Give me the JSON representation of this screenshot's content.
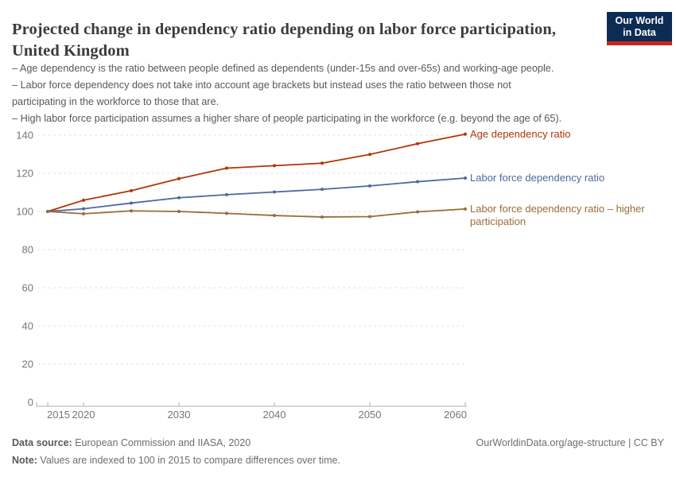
{
  "header": {
    "title": "Projected change in dependency ratio depending on labor force participation, United Kingdom",
    "logo": {
      "line1": "Our World",
      "line2": "in Data",
      "bg_color": "#0c2c54",
      "bar_color": "#c9251c"
    }
  },
  "subtitle": {
    "lines": [
      "– Age dependency is the ratio between people defined as dependents (under-15s and over-65s) and working-age people.",
      "– Labor force dependency does not take into account age brackets but instead uses the ratio between those not",
      "participating in the workforce to those that are.",
      "– High labor force participation assumes a higher share of people participating in the workforce (e.g. beyond the age of 65)."
    ]
  },
  "chart_data": {
    "type": "line",
    "title": "Projected change in dependency ratio depending on labor force participation, United Kingdom",
    "xlabel": "",
    "ylabel": "",
    "x": [
      2015,
      2020,
      2025,
      2030,
      2035,
      2040,
      2045,
      2050,
      2055,
      2060
    ],
    "series": [
      {
        "name": "Age dependency ratio",
        "label_lines": [
          "Age dependency ratio"
        ],
        "color": "#b13507",
        "values": [
          100,
          105.9,
          110.9,
          117.2,
          122.7,
          124.0,
          125.3,
          129.9,
          135.5,
          140.5
        ]
      },
      {
        "name": "Labor force dependency ratio",
        "label_lines": [
          "Labor force dependency ratio"
        ],
        "color": "#4c6a9c",
        "values": [
          100,
          101.4,
          104.4,
          107.2,
          108.8,
          110.2,
          111.6,
          113.4,
          115.6,
          117.5
        ]
      },
      {
        "name": "Labor force dependency ratio – higher participation",
        "label_lines": [
          "Labor force dependency ratio – higher",
          "participation"
        ],
        "color": "#996d39",
        "values": [
          100,
          98.8,
          100.3,
          100.0,
          99.0,
          97.9,
          97.1,
          97.3,
          99.8,
          101.3
        ]
      }
    ],
    "y_ticks": [
      0,
      20,
      40,
      60,
      80,
      100,
      120,
      140
    ],
    "x_ticks": [
      2015,
      2020,
      2030,
      2040,
      2050,
      2060
    ],
    "ylim": [
      0,
      140
    ],
    "xlim": [
      2015,
      2060
    ],
    "grid": "horizontal-dashed",
    "legend_position": "right-of-line-ends",
    "index_note": "Values are indexed to 100 in 2015"
  },
  "footer": {
    "datasource_label": "Data source:",
    "datasource_text": " European Commission and IIASA, 2020",
    "note_label": "Note:",
    "note_text": " Values are indexed to 100 in 2015 to compare differences over time.",
    "link_text": "OurWorldinData.org/age-structure | CC BY"
  }
}
